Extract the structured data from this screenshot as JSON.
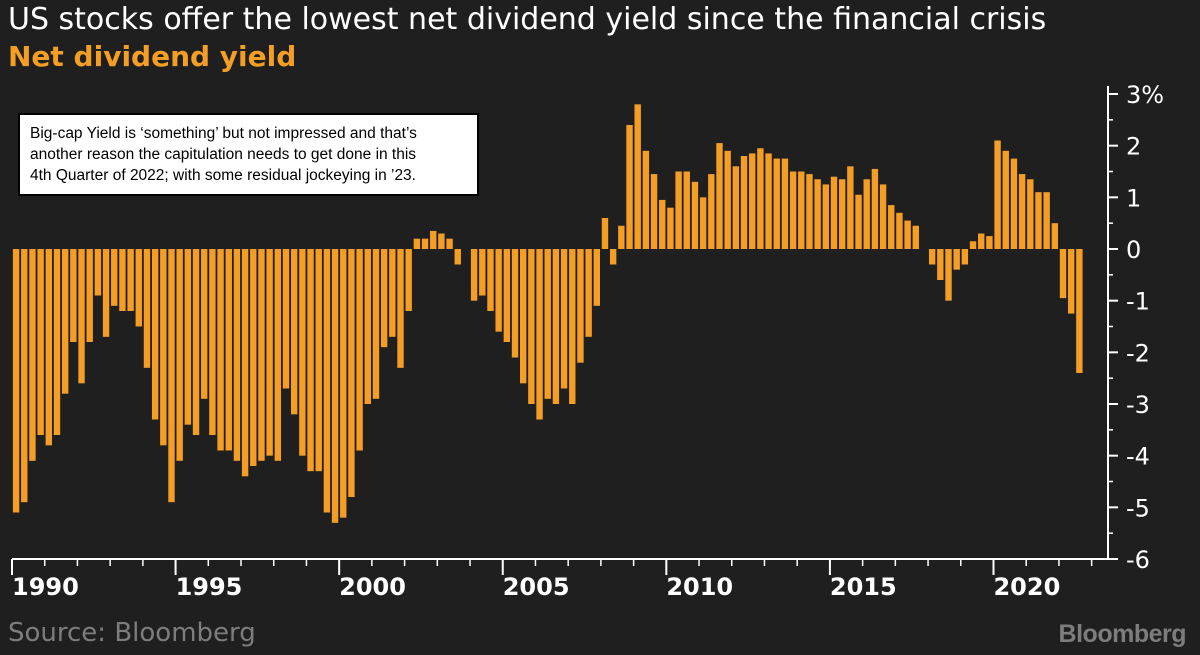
{
  "header": {
    "title": "US stocks offer the lowest net dividend yield since the financial crisis",
    "subtitle": "Net dividend yield"
  },
  "annotation": {
    "lines": [
      "Big-cap Yield is ‘something’ but not impressed and that’s",
      "another reason the capitulation needs to get done in this",
      "4th Quarter of 2022; with some residual jockeying in ’23."
    ]
  },
  "footer": {
    "source": "Source: Bloomberg",
    "brand": "Bloomberg"
  },
  "colors": {
    "background": "#1f1f1f",
    "bar": "#f59e25",
    "subtitle": "#f59e25",
    "axis": "#ffffff",
    "footer_text": "#7d7d7d"
  },
  "chart_data": {
    "type": "bar",
    "title": "Net dividend yield",
    "frequency": "quarterly",
    "start_year": 1990,
    "ylim": [
      -6,
      3
    ],
    "yticks": [
      {
        "value": 3,
        "label": "3%"
      },
      {
        "value": 2,
        "label": "2"
      },
      {
        "value": 1,
        "label": "1"
      },
      {
        "value": 0,
        "label": "0"
      },
      {
        "value": -1,
        "label": "-1"
      },
      {
        "value": -2,
        "label": "-2"
      },
      {
        "value": -3,
        "label": "-3"
      },
      {
        "value": -4,
        "label": "-4"
      },
      {
        "value": -5,
        "label": "-5"
      },
      {
        "value": -6,
        "label": "-6"
      }
    ],
    "xlim": [
      1990,
      2023.5
    ],
    "xticks": [
      {
        "value": 1990,
        "label": "1990"
      },
      {
        "value": 1995,
        "label": "1995"
      },
      {
        "value": 2000,
        "label": "2000"
      },
      {
        "value": 2005,
        "label": "2005"
      },
      {
        "value": 2010,
        "label": "2010"
      },
      {
        "value": 2015,
        "label": "2015"
      },
      {
        "value": 2020,
        "label": "2020"
      }
    ],
    "grid": false,
    "y_axis_position": "right",
    "values": [
      -5.1,
      -4.9,
      -4.1,
      -3.6,
      -3.8,
      -3.6,
      -2.8,
      -1.8,
      -2.6,
      -1.8,
      -0.9,
      -1.7,
      -1.1,
      -1.2,
      -1.2,
      -1.5,
      -2.3,
      -3.3,
      -3.8,
      -4.9,
      -4.1,
      -3.4,
      -3.6,
      -2.9,
      -3.6,
      -3.9,
      -3.9,
      -4.1,
      -4.4,
      -4.2,
      -4.1,
      -4.0,
      -4.1,
      -2.7,
      -3.2,
      -4.0,
      -4.3,
      -4.3,
      -5.1,
      -5.3,
      -5.2,
      -4.8,
      -3.9,
      -3.0,
      -2.9,
      -1.9,
      -1.7,
      -2.3,
      -1.2,
      0.2,
      0.2,
      0.35,
      0.3,
      0.2,
      -0.3,
      0.0,
      -1.0,
      -0.9,
      -1.2,
      -1.6,
      -1.8,
      -2.1,
      -2.6,
      -3.0,
      -3.3,
      -2.9,
      -3.0,
      -2.7,
      -3.0,
      -2.2,
      -1.7,
      -1.1,
      0.6,
      -0.3,
      0.45,
      2.4,
      2.8,
      1.9,
      1.45,
      0.95,
      0.8,
      1.5,
      1.5,
      1.3,
      1.0,
      1.45,
      2.05,
      1.9,
      1.6,
      1.8,
      1.85,
      1.95,
      1.85,
      1.75,
      1.75,
      1.5,
      1.5,
      1.45,
      1.35,
      1.25,
      1.4,
      1.35,
      1.6,
      1.05,
      1.35,
      1.55,
      1.25,
      0.85,
      0.7,
      0.55,
      0.45,
      0.0,
      -0.3,
      -0.6,
      -1.0,
      -0.4,
      -0.3,
      0.15,
      0.3,
      0.25,
      2.1,
      1.9,
      1.75,
      1.45,
      1.35,
      1.1,
      1.1,
      0.5,
      -0.95,
      -1.25,
      -2.4
    ]
  }
}
